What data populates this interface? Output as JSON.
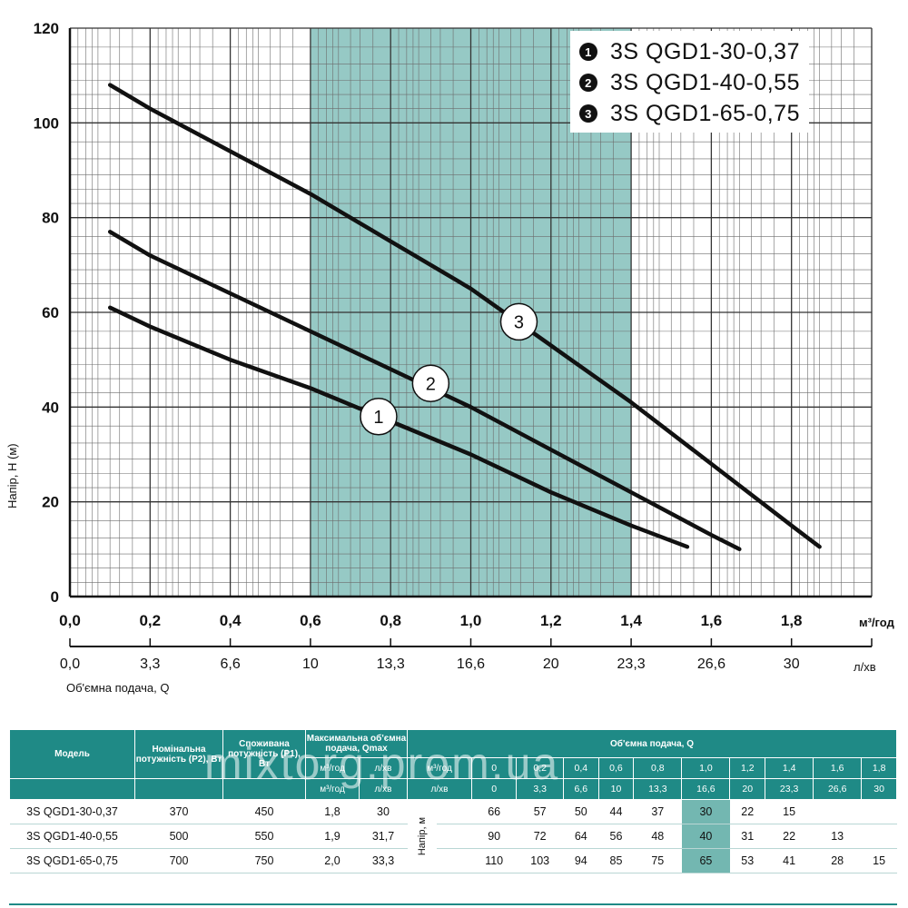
{
  "chart_data": {
    "type": "line",
    "xlim": [
      0,
      2.0
    ],
    "ylim": [
      0,
      120
    ],
    "x_ticks": [
      "0,0",
      "0,2",
      "0,4",
      "0,6",
      "0,8",
      "1,0",
      "1,2",
      "1,4",
      "1,6",
      "1,8"
    ],
    "x_ticks_values": [
      0,
      0.2,
      0.4,
      0.6,
      0.8,
      1.0,
      1.2,
      1.4,
      1.6,
      1.8
    ],
    "x2_ticks": [
      "0,0",
      "3,3",
      "6,6",
      "10",
      "13,3",
      "16,6",
      "20",
      "23,3",
      "26,6",
      "30"
    ],
    "y_ticks": [
      "0",
      "20",
      "40",
      "60",
      "80",
      "100",
      "120"
    ],
    "y_ticks_values": [
      0,
      20,
      40,
      60,
      80,
      100,
      120
    ],
    "xlabel_unit": "м³/год",
    "x2label_unit": "л/хв",
    "ylabel": "Напір, Н (м)",
    "x_axis_title": "Об'ємна подача, Q",
    "shaded_range": [
      0.6,
      1.4
    ],
    "grid": true,
    "legend_position": "top-right",
    "series": [
      {
        "name": "3S QGD1-30-0,37",
        "marker": "1",
        "x": [
          0.1,
          0.2,
          0.4,
          0.6,
          0.8,
          1.0,
          1.2,
          1.4,
          1.54
        ],
        "y": [
          61,
          57,
          50,
          44,
          37,
          30,
          22,
          15,
          10.5
        ]
      },
      {
        "name": "3S QGD1-40-0,55",
        "marker": "2",
        "x": [
          0.1,
          0.2,
          0.4,
          0.6,
          0.8,
          1.0,
          1.2,
          1.4,
          1.6,
          1.67
        ],
        "y": [
          77,
          72,
          64,
          56,
          48,
          40,
          31,
          22,
          13,
          10
        ]
      },
      {
        "name": "3S QGD1-65-0,75",
        "marker": "3",
        "x": [
          0.1,
          0.2,
          0.4,
          0.6,
          0.8,
          1.0,
          1.2,
          1.4,
          1.6,
          1.8,
          1.87
        ],
        "y": [
          108,
          103,
          94,
          85,
          75,
          65,
          53,
          41,
          28,
          15,
          10.5
        ]
      }
    ],
    "markers": [
      {
        "label": "1",
        "x": 0.77,
        "y": 38
      },
      {
        "label": "2",
        "x": 0.9,
        "y": 45
      },
      {
        "label": "3",
        "x": 1.12,
        "y": 58
      }
    ],
    "colors": {
      "line": "#111111",
      "shade": "#73b7b1",
      "grid": "#6d6d6d"
    }
  },
  "legend": [
    {
      "badge": "1",
      "label": "3S QGD1-30-0,37"
    },
    {
      "badge": "2",
      "label": "3S QGD1-40-0,55"
    },
    {
      "badge": "3",
      "label": "3S QGD1-65-0,75"
    }
  ],
  "table": {
    "headers": {
      "model": "Модель",
      "p2": "Номінальна потужність (P2), Вт",
      "p1": "Споживана потужність (P1), Вт",
      "qmax": "Максимальна об'ємна подача, Qmax",
      "qmax_m3": "м³/год",
      "qmax_lmin": "л/хв",
      "flow": "Об'ємна подача, Q",
      "flow_m3": "м³/год",
      "flow_lmin": "л/хв",
      "head": "Напір, м"
    },
    "flow_m3": [
      "0",
      "0,2",
      "0,4",
      "0,6",
      "0,8",
      "1,0",
      "1,2",
      "1,4",
      "1,6",
      "1,8"
    ],
    "flow_lmin": [
      "0",
      "3,3",
      "6,6",
      "10",
      "13,3",
      "16,6",
      "20",
      "23,3",
      "26,6",
      "30"
    ],
    "rows": [
      {
        "model": "3S QGD1-30-0,37",
        "p2": "370",
        "p1": "450",
        "qmax_m3": "1,8",
        "qmax_lmin": "30",
        "heads": [
          "66",
          "57",
          "50",
          "44",
          "37",
          "30",
          "22",
          "15",
          "",
          ""
        ]
      },
      {
        "model": "3S QGD1-40-0,55",
        "p2": "500",
        "p1": "550",
        "qmax_m3": "1,9",
        "qmax_lmin": "31,7",
        "heads": [
          "90",
          "72",
          "64",
          "56",
          "48",
          "40",
          "31",
          "22",
          "13",
          ""
        ]
      },
      {
        "model": "3S QGD1-65-0,75",
        "p2": "700",
        "p1": "750",
        "qmax_m3": "2,0",
        "qmax_lmin": "33,3",
        "heads": [
          "110",
          "103",
          "94",
          "85",
          "75",
          "65",
          "53",
          "41",
          "28",
          "15"
        ]
      }
    ]
  },
  "watermark": "mixtorg.prom.ua"
}
